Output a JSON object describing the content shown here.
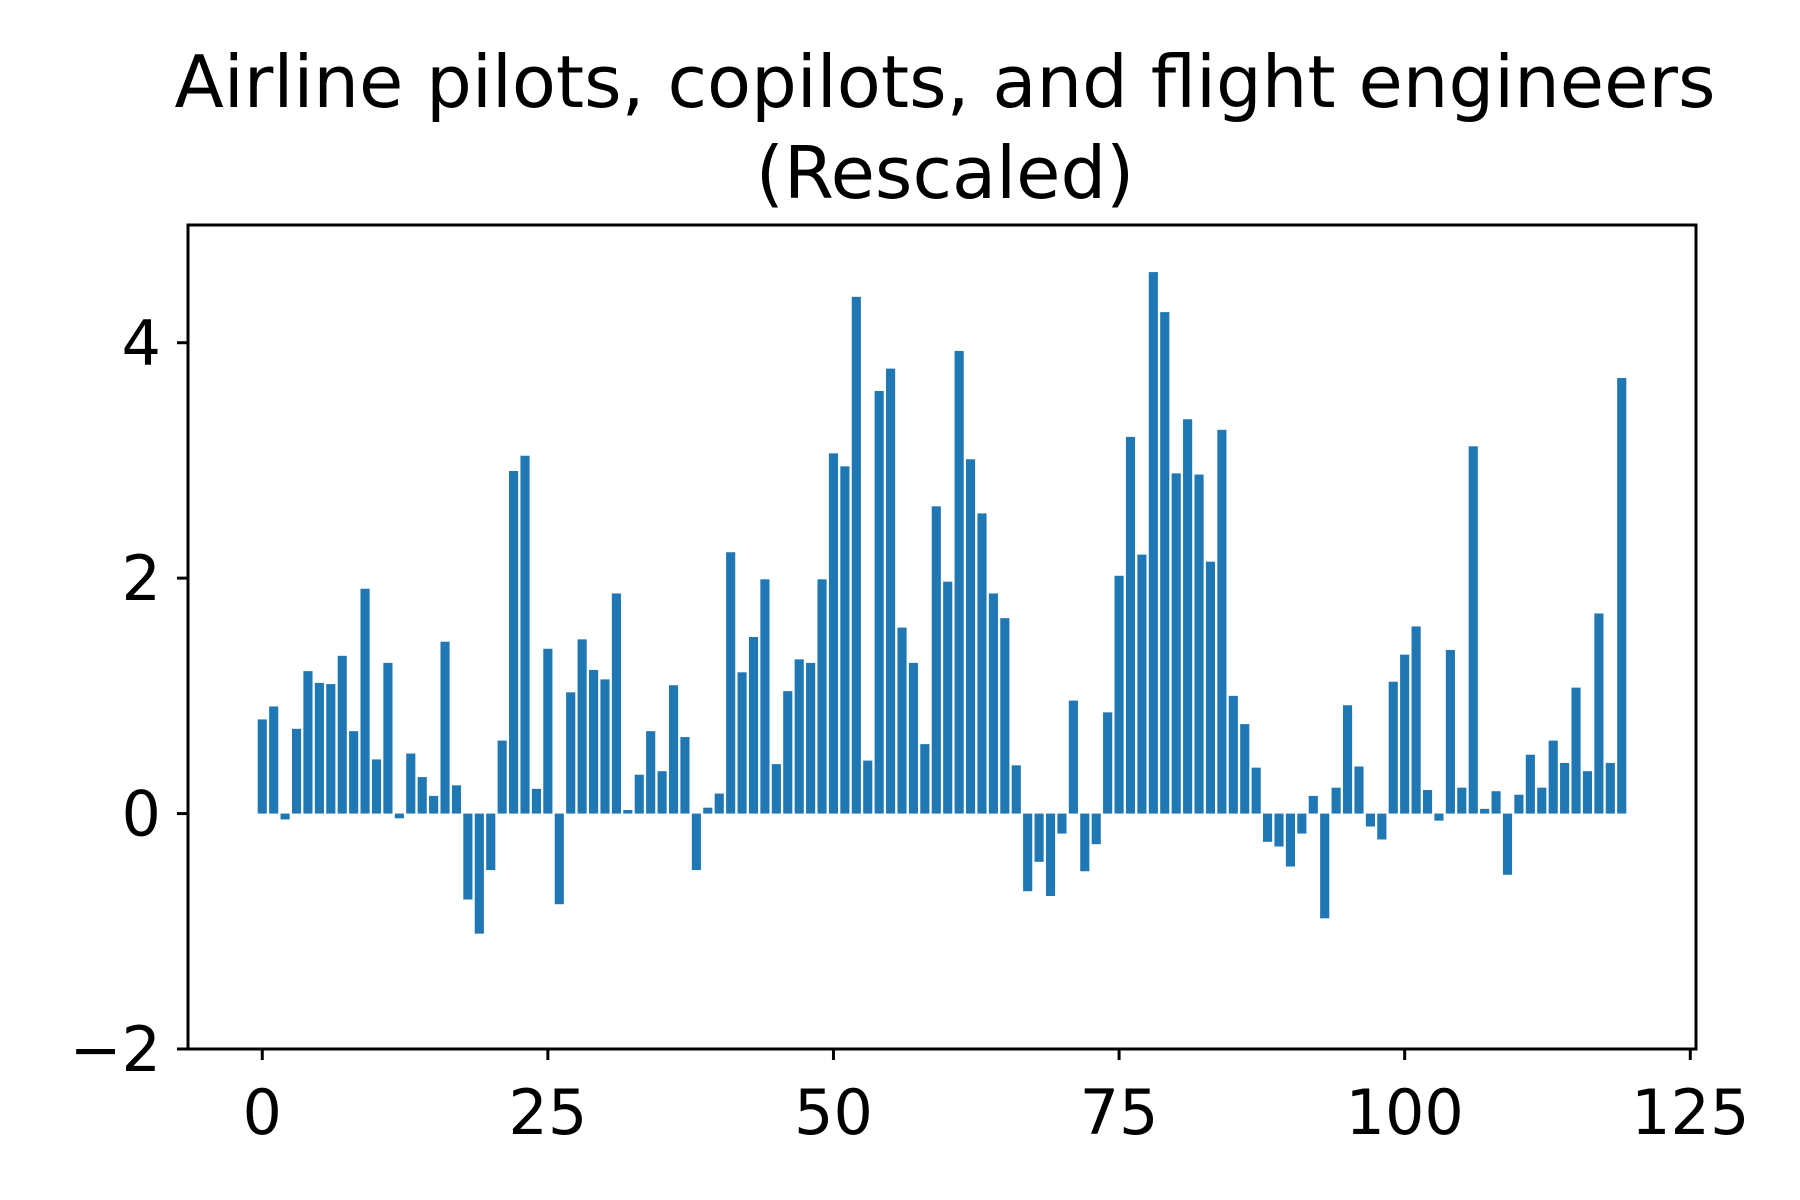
{
  "chart_data": {
    "type": "bar",
    "title": "Airline pilots, copilots, and flight engineers (Rescaled)",
    "title_lines": [
      "Airline pilots, copilots, and flight engineers",
      "(Rescaled)"
    ],
    "xlabel": "",
    "ylabel": "",
    "xlim": [
      -6.5,
      125.5
    ],
    "ylim": [
      -2,
      5
    ],
    "x_ticks": [
      0,
      25,
      50,
      75,
      100,
      125
    ],
    "x_tick_labels": [
      "0",
      "25",
      "50",
      "75",
      "100",
      "125"
    ],
    "y_ticks": [
      -2,
      0,
      2,
      4
    ],
    "y_tick_labels": [
      "−2",
      "0",
      "2",
      "4"
    ],
    "grid": false,
    "bar_color": "#1f77b4",
    "x": [
      0,
      1,
      2,
      3,
      4,
      5,
      6,
      7,
      8,
      9,
      10,
      11,
      12,
      13,
      14,
      15,
      16,
      17,
      18,
      19,
      20,
      21,
      22,
      23,
      24,
      25,
      26,
      27,
      28,
      29,
      30,
      31,
      32,
      33,
      34,
      35,
      36,
      37,
      38,
      39,
      40,
      41,
      42,
      43,
      44,
      45,
      46,
      47,
      48,
      49,
      50,
      51,
      52,
      53,
      54,
      55,
      56,
      57,
      58,
      59,
      60,
      61,
      62,
      63,
      64,
      65,
      66,
      67,
      68,
      69,
      70,
      71,
      72,
      73,
      74,
      75,
      76,
      77,
      78,
      79,
      80,
      81,
      82,
      83,
      84,
      85,
      86,
      87,
      88,
      89,
      90,
      91,
      92,
      93,
      94,
      95,
      96,
      97,
      98,
      99,
      100,
      101,
      102,
      103,
      104,
      105,
      106,
      107,
      108,
      109,
      110,
      111,
      112,
      113,
      114,
      115,
      116,
      117,
      118,
      119
    ],
    "values": [
      0.8,
      0.91,
      -0.05,
      0.72,
      1.21,
      1.11,
      1.1,
      1.34,
      0.7,
      1.91,
      0.46,
      1.28,
      -0.04,
      0.51,
      0.31,
      0.15,
      1.46,
      0.24,
      -0.73,
      -1.02,
      -0.48,
      0.62,
      2.91,
      3.04,
      0.21,
      1.4,
      -0.77,
      1.03,
      1.48,
      1.22,
      1.14,
      1.87,
      0.03,
      0.33,
      0.7,
      0.36,
      1.09,
      0.65,
      -0.48,
      0.05,
      0.17,
      2.22,
      1.2,
      1.5,
      1.99,
      0.42,
      1.04,
      1.31,
      1.28,
      1.99,
      3.06,
      2.95,
      4.39,
      0.45,
      3.59,
      3.78,
      1.58,
      1.28,
      0.59,
      2.61,
      1.97,
      3.93,
      3.01,
      2.55,
      1.87,
      1.66,
      0.41,
      -0.66,
      -0.41,
      -0.7,
      -0.17,
      0.96,
      -0.49,
      -0.26,
      0.86,
      2.02,
      3.2,
      2.2,
      4.6,
      4.26,
      2.89,
      3.35,
      2.88,
      2.14,
      3.26,
      1.0,
      0.76,
      0.39,
      -0.24,
      -0.28,
      -0.45,
      -0.17,
      0.15,
      -0.89,
      0.22,
      0.92,
      0.4,
      -0.11,
      -0.22,
      1.12,
      1.35,
      1.59,
      0.2,
      -0.06,
      1.39,
      0.22,
      3.12,
      0.04,
      0.19,
      -0.52,
      0.16,
      0.5,
      0.22,
      0.62,
      0.43,
      1.07,
      0.36,
      1.7,
      0.43,
      3.7
    ]
  }
}
